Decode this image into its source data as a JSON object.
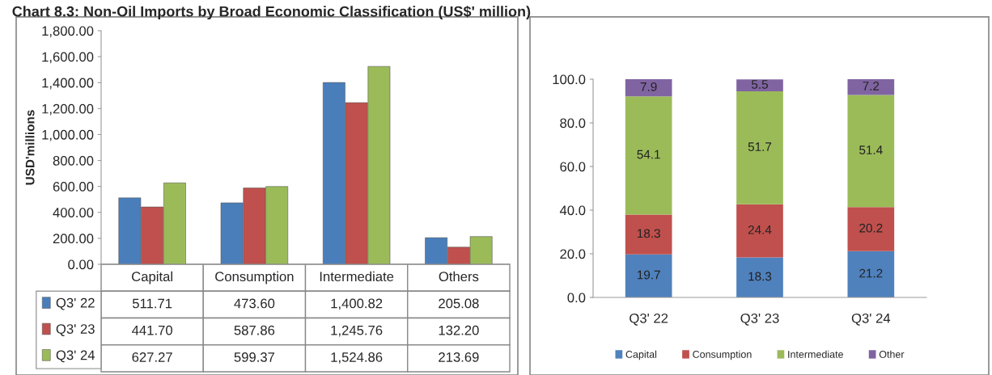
{
  "chart_data": [
    {
      "type": "bar",
      "title": "Chart 8.3: Non-Oil Imports by Broad Economic Classification (US$' million)",
      "ylabel": "USD'millions",
      "categories": [
        "Capital",
        "Consumption",
        "Intermediate",
        "Others"
      ],
      "series": [
        {
          "name": "Q3' 22",
          "color": "#4a7ebb",
          "values": [
            511.71,
            473.6,
            1400.82,
            205.08
          ]
        },
        {
          "name": "Q3' 23",
          "color": "#c0504d",
          "values": [
            441.7,
            587.86,
            1245.76,
            132.2
          ]
        },
        {
          "name": "Q3' 24",
          "color": "#9bbb59",
          "values": [
            627.27,
            599.37,
            1524.86,
            213.69
          ]
        }
      ],
      "value_labels": [
        [
          "511.71",
          "473.60",
          "1,400.82",
          "205.08"
        ],
        [
          "441.70",
          "587.86",
          "1,245.76",
          "132.20"
        ],
        [
          "627.27",
          "599.37",
          "1,524.86",
          "213.69"
        ]
      ],
      "ylim": [
        0,
        1800
      ],
      "yticks": [
        {
          "value": 0,
          "label": "0.00"
        },
        {
          "value": 200,
          "label": "200.00"
        },
        {
          "value": 400,
          "label": "400.00"
        },
        {
          "value": 600,
          "label": "600.00"
        },
        {
          "value": 800,
          "label": "800.00"
        },
        {
          "value": 1000,
          "label": "1,000.00"
        },
        {
          "value": 1200,
          "label": "1,200.00"
        },
        {
          "value": 1400,
          "label": "1,400.00"
        },
        {
          "value": 1600,
          "label": "1,600.00"
        },
        {
          "value": 1800,
          "label": "1,800.00"
        }
      ],
      "grid": false,
      "legend": "bottom"
    },
    {
      "type": "bar",
      "stacked": true,
      "data_labels": true,
      "categories": [
        "Q3' 22",
        "Q3' 23",
        "Q3' 24"
      ],
      "series": [
        {
          "name": "Capital",
          "color": "#4f81bd",
          "values": [
            19.7,
            18.3,
            21.2
          ]
        },
        {
          "name": "Consumption",
          "color": "#c0504d",
          "values": [
            18.3,
            24.4,
            20.2
          ]
        },
        {
          "name": "Intermediate",
          "color": "#9bbb59",
          "values": [
            54.1,
            51.7,
            51.4
          ]
        },
        {
          "name": "Other",
          "color": "#8064a2",
          "values": [
            7.9,
            5.5,
            7.2
          ]
        }
      ],
      "ylim": [
        0,
        100
      ],
      "yticks": [
        {
          "value": 0,
          "label": "0.0"
        },
        {
          "value": 20,
          "label": "20.0"
        },
        {
          "value": 40,
          "label": "40.0"
        },
        {
          "value": 60,
          "label": "60.0"
        },
        {
          "value": 80,
          "label": "80.0"
        },
        {
          "value": 100,
          "label": "100.0"
        }
      ],
      "grid": false,
      "legend": "bottom"
    }
  ]
}
